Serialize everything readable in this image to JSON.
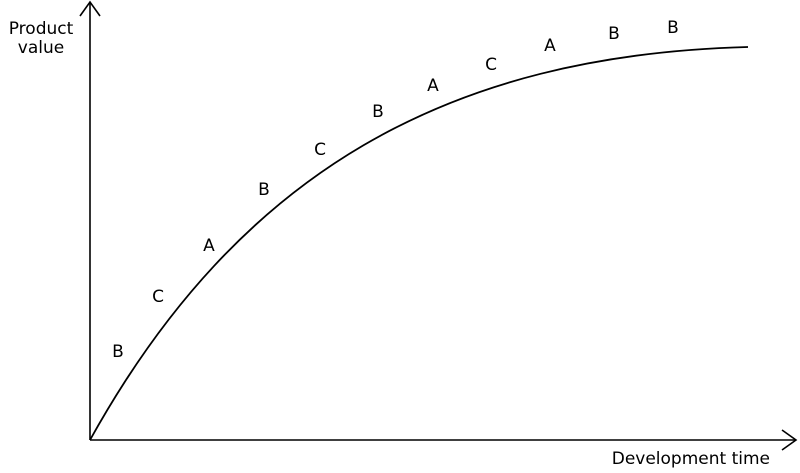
{
  "axes": {
    "y_label": "Product value",
    "x_label": "Development time"
  },
  "curve_labels": [
    "B",
    "C",
    "A",
    "B",
    "C",
    "B",
    "A",
    "C",
    "A",
    "B",
    "B"
  ]
}
